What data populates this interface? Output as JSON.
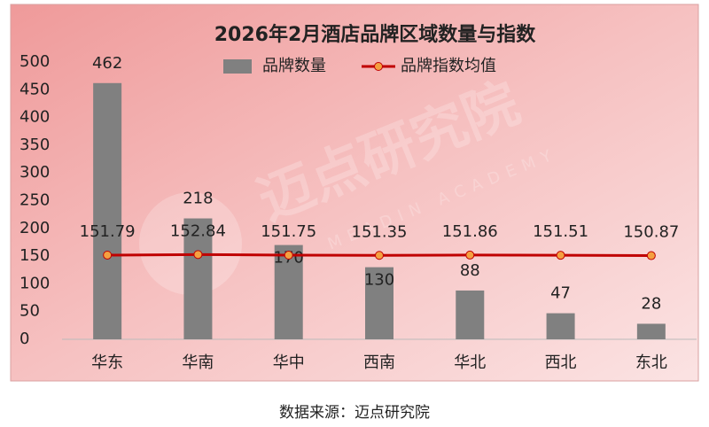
{
  "chart_data": {
    "type": "bar",
    "title": "2026年2月酒店品牌区域数量与指数",
    "categories": [
      "华东",
      "华南",
      "华中",
      "西南",
      "华北",
      "西北",
      "东北"
    ],
    "series": [
      {
        "name": "品牌数量",
        "type": "bar",
        "color": "#808080",
        "values": [
          462,
          218,
          170,
          130,
          88,
          47,
          28
        ]
      },
      {
        "name": "品牌指数均值",
        "type": "line",
        "color": "#c00000",
        "marker_color": "#f4a040",
        "values": [
          151.79,
          152.84,
          151.75,
          151.35,
          151.86,
          151.51,
          150.87
        ]
      }
    ],
    "ylim": [
      0,
      500
    ],
    "yticks": [
      0,
      50,
      100,
      150,
      200,
      250,
      300,
      350,
      400,
      450,
      500
    ],
    "legend": "top",
    "grid": false,
    "watermark": {
      "title": "迈点研究院",
      "subtitle": "MEADIN ACADEMY"
    },
    "source": "数据来源：迈点研究院"
  }
}
